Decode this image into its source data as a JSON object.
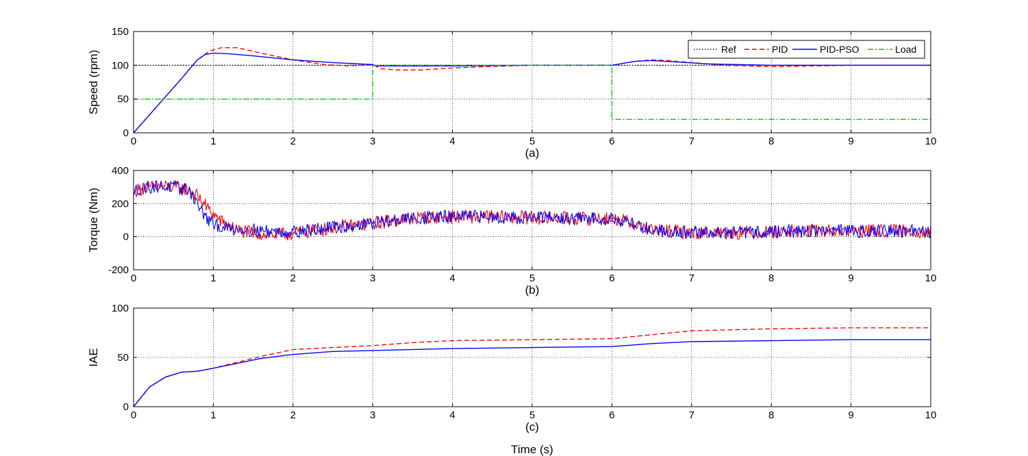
{
  "chart_data": [
    {
      "type": "line",
      "caption": "(a)",
      "ylabel": "Speed (rpm)",
      "xlabel": "",
      "xlim": [
        0,
        10
      ],
      "ylim": [
        0,
        150
      ],
      "xticks": [
        0,
        1,
        2,
        3,
        4,
        5,
        6,
        7,
        8,
        9,
        10
      ],
      "yticks": [
        0,
        50,
        100,
        150
      ],
      "grid": true,
      "legend": {
        "position": "top-right",
        "orientation": "horizontal"
      },
      "series": [
        {
          "name": "Ref",
          "color": "#000000",
          "style": "dotted",
          "x": [
            0,
            10
          ],
          "y": [
            100,
            100
          ]
        },
        {
          "name": "PID",
          "color": "#ff0000",
          "style": "dashed",
          "x": [
            0,
            0.3,
            0.6,
            0.8,
            0.95,
            1.1,
            1.3,
            1.6,
            2.0,
            2.4,
            2.7,
            3.0,
            3.1,
            3.3,
            3.6,
            4.0,
            4.4,
            5.0,
            5.5,
            6.0,
            6.1,
            6.3,
            6.5,
            6.7,
            7.0,
            7.4,
            8.0,
            8.5,
            9.0,
            10.0
          ],
          "y": [
            0,
            40,
            80,
            108,
            121,
            126,
            126,
            118,
            108,
            101,
            99,
            101,
            95,
            93,
            93,
            96,
            98,
            100,
            100,
            100,
            102,
            106,
            108,
            107,
            104,
            100,
            98,
            99,
            100,
            100
          ]
        },
        {
          "name": "PID-PSO",
          "color": "#0000ff",
          "style": "solid",
          "x": [
            0,
            0.3,
            0.6,
            0.8,
            0.9,
            1.0,
            1.2,
            1.5,
            2.0,
            2.5,
            3.0,
            3.05,
            3.5,
            4.0,
            5.0,
            6.0,
            6.1,
            6.3,
            6.5,
            6.8,
            7.2,
            8.0,
            9.0,
            10.0
          ],
          "y": [
            0,
            40,
            80,
            108,
            116,
            118,
            117,
            114,
            108,
            104,
            101,
            99,
            99,
            99,
            100,
            100,
            102,
            106,
            107,
            105,
            102,
            100,
            100,
            100
          ]
        },
        {
          "name": "Load",
          "color": "#00cc00",
          "style": "dashdot",
          "x": [
            0,
            3,
            3,
            6,
            6,
            10
          ],
          "y": [
            50,
            50,
            100,
            100,
            20,
            20
          ]
        }
      ]
    },
    {
      "type": "line",
      "caption": "(b)",
      "ylabel": "Torque (Nm)",
      "xlabel": "",
      "xlim": [
        0,
        10
      ],
      "ylim": [
        -200,
        400
      ],
      "xticks": [
        0,
        1,
        2,
        3,
        4,
        5,
        6,
        7,
        8,
        9,
        10
      ],
      "yticks": [
        -200,
        0,
        200,
        400
      ],
      "grid": true,
      "series": [
        {
          "name": "PID",
          "color": "#ff0000",
          "style": "solid",
          "x": [
            0,
            0.03,
            0.1,
            0.3,
            0.5,
            0.7,
            0.85,
            0.95,
            1.1,
            1.3,
            1.5,
            1.8,
            2.0,
            2.3,
            2.6,
            3.0,
            3.3,
            3.6,
            4.0,
            4.5,
            5.0,
            5.5,
            6.0,
            6.2,
            6.5,
            7.0,
            7.5,
            8.0,
            8.5,
            9.0,
            9.5,
            10.0
          ],
          "y": [
            250,
            280,
            290,
            305,
            300,
            285,
            220,
            160,
            90,
            40,
            20,
            10,
            20,
            40,
            60,
            80,
            100,
            115,
            120,
            120,
            115,
            110,
            110,
            90,
            40,
            25,
            25,
            30,
            35,
            35,
            35,
            30
          ],
          "noise": 42
        },
        {
          "name": "PID-PSO",
          "color": "#0000ff",
          "style": "solid",
          "x": [
            0,
            0.03,
            0.1,
            0.3,
            0.5,
            0.7,
            0.8,
            0.9,
            1.0,
            1.2,
            1.5,
            1.8,
            2.0,
            2.3,
            2.6,
            3.0,
            3.3,
            3.6,
            4.0,
            4.5,
            5.0,
            5.5,
            6.0,
            6.2,
            6.5,
            7.0,
            7.5,
            8.0,
            8.5,
            9.0,
            9.5,
            10.0
          ],
          "y": [
            250,
            285,
            295,
            305,
            300,
            280,
            200,
            120,
            70,
            50,
            40,
            30,
            30,
            45,
            60,
            80,
            100,
            115,
            120,
            120,
            115,
            110,
            110,
            90,
            40,
            25,
            25,
            30,
            35,
            35,
            35,
            30
          ],
          "noise": 40
        }
      ]
    },
    {
      "type": "line",
      "caption": "(c)",
      "ylabel": "IAE",
      "xlabel": "Time (s)",
      "xlim": [
        0,
        10
      ],
      "ylim": [
        0,
        100
      ],
      "xticks": [
        0,
        1,
        2,
        3,
        4,
        5,
        6,
        7,
        8,
        9,
        10
      ],
      "yticks": [
        0,
        50,
        100
      ],
      "grid": true,
      "series": [
        {
          "name": "PID",
          "color": "#ff0000",
          "style": "dashed",
          "x": [
            0,
            0.2,
            0.4,
            0.6,
            0.8,
            1.0,
            1.3,
            1.6,
            2.0,
            2.5,
            3.0,
            3.5,
            4.0,
            5.0,
            6.0,
            6.5,
            7.0,
            8.0,
            9.0,
            10.0
          ],
          "y": [
            0,
            20,
            30,
            35,
            36,
            39,
            45,
            51,
            58,
            60,
            62,
            65,
            67,
            68,
            69,
            73,
            77,
            79,
            80,
            80
          ]
        },
        {
          "name": "PID-PSO",
          "color": "#0000ff",
          "style": "solid",
          "x": [
            0,
            0.2,
            0.4,
            0.6,
            0.8,
            1.0,
            1.3,
            1.6,
            2.0,
            2.5,
            3.0,
            4.0,
            5.0,
            6.0,
            6.5,
            7.0,
            8.0,
            9.0,
            10.0
          ],
          "y": [
            0,
            20,
            30,
            35,
            36,
            39,
            44,
            49,
            53,
            56,
            57,
            59,
            60,
            61,
            64,
            66,
            67,
            68,
            68
          ]
        }
      ]
    }
  ]
}
